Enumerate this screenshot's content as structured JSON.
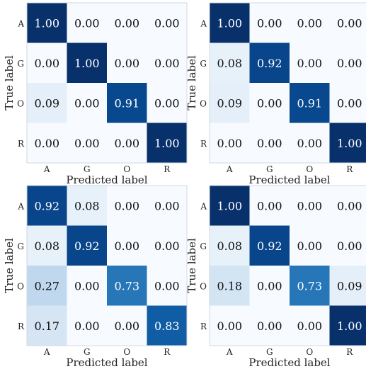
{
  "chart_data": [
    {
      "type": "heatmap",
      "xlabel": "Predicted label",
      "ylabel": "True label",
      "x_categories": [
        "A",
        "G",
        "O",
        "R"
      ],
      "y_categories": [
        "A",
        "G",
        "O",
        "R"
      ],
      "matrix": [
        [
          1.0,
          0.0,
          0.0,
          0.0
        ],
        [
          0.0,
          1.0,
          0.0,
          0.0
        ],
        [
          0.09,
          0.0,
          0.91,
          0.0
        ],
        [
          0.0,
          0.0,
          0.0,
          1.0
        ]
      ],
      "value_format": "0.00",
      "colormap": "Blues",
      "range": [
        0,
        1
      ]
    },
    {
      "type": "heatmap",
      "xlabel": "Predicted label",
      "ylabel": "True label",
      "x_categories": [
        "A",
        "G",
        "O",
        "R"
      ],
      "y_categories": [
        "A",
        "G",
        "O",
        "R"
      ],
      "matrix": [
        [
          1.0,
          0.0,
          0.0,
          0.0
        ],
        [
          0.08,
          0.92,
          0.0,
          0.0
        ],
        [
          0.09,
          0.0,
          0.91,
          0.0
        ],
        [
          0.0,
          0.0,
          0.0,
          1.0
        ]
      ],
      "value_format": "0.00",
      "colormap": "Blues",
      "range": [
        0,
        1
      ]
    },
    {
      "type": "heatmap",
      "xlabel": "Predicted label",
      "ylabel": "True label",
      "x_categories": [
        "A",
        "G",
        "O",
        "R"
      ],
      "y_categories": [
        "A",
        "G",
        "O",
        "R"
      ],
      "matrix": [
        [
          0.92,
          0.08,
          0.0,
          0.0
        ],
        [
          0.08,
          0.92,
          0.0,
          0.0
        ],
        [
          0.27,
          0.0,
          0.73,
          0.0
        ],
        [
          0.17,
          0.0,
          0.0,
          0.83
        ]
      ],
      "value_format": "0.00",
      "colormap": "Blues",
      "range": [
        0,
        1
      ]
    },
    {
      "type": "heatmap",
      "xlabel": "Predicted label",
      "ylabel": "True label",
      "x_categories": [
        "A",
        "G",
        "O",
        "R"
      ],
      "y_categories": [
        "A",
        "G",
        "O",
        "R"
      ],
      "matrix": [
        [
          1.0,
          0.0,
          0.0,
          0.0
        ],
        [
          0.08,
          0.92,
          0.0,
          0.0
        ],
        [
          0.18,
          0.0,
          0.73,
          0.09
        ],
        [
          0.0,
          0.0,
          0.0,
          1.0
        ]
      ],
      "value_format": "0.00",
      "colormap": "Blues",
      "range": [
        0,
        1
      ]
    }
  ]
}
